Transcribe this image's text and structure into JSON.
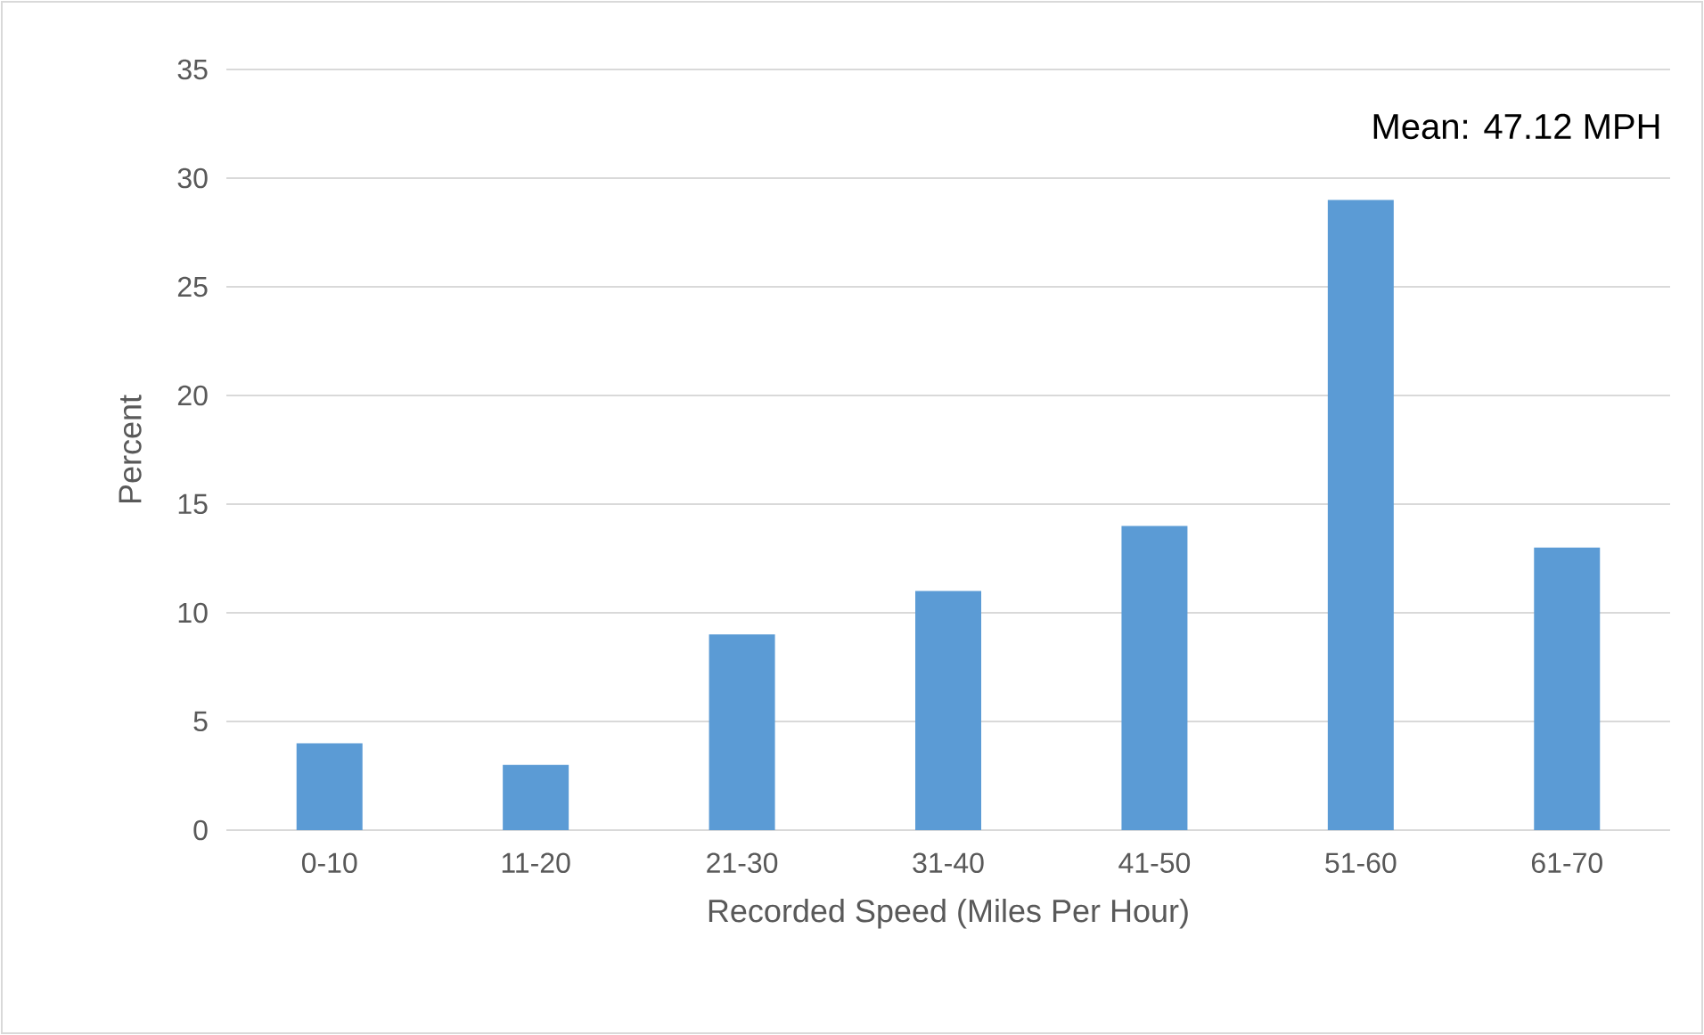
{
  "chart_data": {
    "type": "bar",
    "categories": [
      "0-10",
      "11-20",
      "21-30",
      "31-40",
      "41-50",
      "51-60",
      "61-70"
    ],
    "values": [
      4,
      3,
      9,
      11,
      14,
      29,
      13
    ],
    "color": "#5b9bd5",
    "xlabel": "Recorded Speed (Miles Per Hour)",
    "ylabel": "Percent",
    "ylim": [
      0,
      35
    ],
    "yticks": [
      0,
      5,
      10,
      15,
      20,
      25,
      30,
      35
    ],
    "grid": "y",
    "annotations": [
      "Mean: 47.12 MPH"
    ]
  }
}
